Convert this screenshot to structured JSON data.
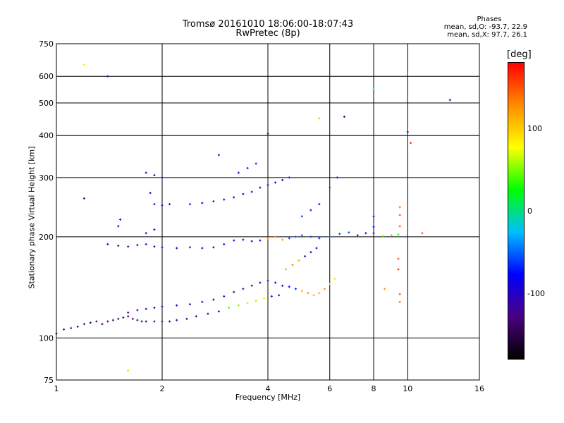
{
  "header": {
    "title_line1": "Tromsø 20161010 18:06:00-18:07:43",
    "title_line2": "RwPretec (8p)"
  },
  "phase_stats": {
    "title": "Phases",
    "line_o": "mean, sd,O: -93.7, 22.9",
    "line_x": "mean, sd,X:  97.7, 26.1"
  },
  "colorbar": {
    "unit": "[deg]",
    "ticks": [
      "100",
      "0",
      "-100"
    ],
    "tick_values": [
      100,
      0,
      -100
    ],
    "range": [
      -180,
      180
    ],
    "colors": [
      "#000000",
      "#4b0082",
      "#0000ff",
      "#00bfff",
      "#00ff00",
      "#ffff00",
      "#ff8c00",
      "#ff0000"
    ]
  },
  "chart_data": {
    "type": "scatter",
    "title": "Tromsø 20161010 18:06:00-18:07:43",
    "subtitle": "RwPretec (8p)",
    "xlabel": "Frequency [MHz]",
    "ylabel": "Stationary phase Virtual Height [km]",
    "x_scale": "log",
    "y_scale": "log",
    "xlim": [
      1,
      16
    ],
    "ylim": [
      75,
      750
    ],
    "x_ticks": [
      1,
      2,
      4,
      6,
      8,
      10,
      16
    ],
    "x_tick_labels": [
      "1",
      "2",
      "4",
      "6",
      "8",
      "10",
      "16"
    ],
    "y_ticks": [
      75,
      100,
      200,
      300,
      400,
      500,
      600,
      750
    ],
    "y_tick_labels": [
      "75",
      "100",
      "200",
      "300",
      "400",
      "500",
      "600",
      "750"
    ],
    "grid": true,
    "series": [
      {
        "color_by": "phase_deg",
        "points": [
          {
            "x": 1.0,
            "y": 103,
            "phase": -110
          },
          {
            "x": 1.05,
            "y": 106,
            "phase": -115
          },
          {
            "x": 1.1,
            "y": 107,
            "phase": -120
          },
          {
            "x": 1.15,
            "y": 108,
            "phase": -130
          },
          {
            "x": 1.2,
            "y": 110,
            "phase": -125
          },
          {
            "x": 1.25,
            "y": 111,
            "phase": -135
          },
          {
            "x": 1.3,
            "y": 112,
            "phase": -130
          },
          {
            "x": 1.35,
            "y": 110,
            "phase": -140
          },
          {
            "x": 1.4,
            "y": 112,
            "phase": -130
          },
          {
            "x": 1.45,
            "y": 113,
            "phase": -135
          },
          {
            "x": 1.5,
            "y": 114,
            "phase": -140
          },
          {
            "x": 1.55,
            "y": 115,
            "phase": -130
          },
          {
            "x": 1.6,
            "y": 116,
            "phase": -135
          },
          {
            "x": 1.65,
            "y": 114,
            "phase": -140
          },
          {
            "x": 1.7,
            "y": 113,
            "phase": -130
          },
          {
            "x": 1.75,
            "y": 112,
            "phase": -135
          },
          {
            "x": 1.8,
            "y": 112,
            "phase": -140
          },
          {
            "x": 1.9,
            "y": 112,
            "phase": -130
          },
          {
            "x": 2.0,
            "y": 112,
            "phase": -135
          },
          {
            "x": 2.1,
            "y": 112,
            "phase": -125
          },
          {
            "x": 2.2,
            "y": 113,
            "phase": -130
          },
          {
            "x": 2.35,
            "y": 114,
            "phase": -125
          },
          {
            "x": 2.5,
            "y": 116,
            "phase": -120
          },
          {
            "x": 2.7,
            "y": 118,
            "phase": -115
          },
          {
            "x": 2.9,
            "y": 120,
            "phase": -110
          },
          {
            "x": 3.1,
            "y": 123,
            "phase": 40
          },
          {
            "x": 3.3,
            "y": 125,
            "phase": 50
          },
          {
            "x": 3.5,
            "y": 127,
            "phase": 60
          },
          {
            "x": 3.7,
            "y": 129,
            "phase": 55
          },
          {
            "x": 3.9,
            "y": 131,
            "phase": 70
          },
          {
            "x": 4.1,
            "y": 133,
            "phase": -90
          },
          {
            "x": 4.3,
            "y": 134,
            "phase": -95
          },
          {
            "x": 1.6,
            "y": 119,
            "phase": -120
          },
          {
            "x": 1.7,
            "y": 121,
            "phase": -115
          },
          {
            "x": 1.8,
            "y": 122,
            "phase": -110
          },
          {
            "x": 1.9,
            "y": 123,
            "phase": -105
          },
          {
            "x": 2.0,
            "y": 124,
            "phase": -100
          },
          {
            "x": 2.2,
            "y": 125,
            "phase": -105
          },
          {
            "x": 2.4,
            "y": 126,
            "phase": -100
          },
          {
            "x": 2.6,
            "y": 128,
            "phase": -95
          },
          {
            "x": 2.8,
            "y": 130,
            "phase": -100
          },
          {
            "x": 3.0,
            "y": 133,
            "phase": -110
          },
          {
            "x": 3.2,
            "y": 137,
            "phase": -120
          },
          {
            "x": 3.4,
            "y": 140,
            "phase": -125
          },
          {
            "x": 3.6,
            "y": 143,
            "phase": -115
          },
          {
            "x": 3.8,
            "y": 146,
            "phase": -110
          },
          {
            "x": 4.0,
            "y": 148,
            "phase": -100
          },
          {
            "x": 4.2,
            "y": 146,
            "phase": -95
          },
          {
            "x": 4.4,
            "y": 143,
            "phase": -90
          },
          {
            "x": 4.6,
            "y": 142,
            "phase": -80
          },
          {
            "x": 4.8,
            "y": 140,
            "phase": -70
          },
          {
            "x": 5.0,
            "y": 138,
            "phase": 120
          },
          {
            "x": 5.2,
            "y": 136,
            "phase": 130
          },
          {
            "x": 5.4,
            "y": 134,
            "phase": 110
          },
          {
            "x": 5.6,
            "y": 136,
            "phase": 115
          },
          {
            "x": 5.8,
            "y": 140,
            "phase": 125
          },
          {
            "x": 6.0,
            "y": 145,
            "phase": 100
          },
          {
            "x": 6.2,
            "y": 150,
            "phase": 90
          },
          {
            "x": 4.5,
            "y": 160,
            "phase": 120
          },
          {
            "x": 4.7,
            "y": 165,
            "phase": 130
          },
          {
            "x": 4.9,
            "y": 170,
            "phase": 110
          },
          {
            "x": 5.1,
            "y": 175,
            "phase": -100
          },
          {
            "x": 5.3,
            "y": 180,
            "phase": -95
          },
          {
            "x": 5.5,
            "y": 185,
            "phase": -90
          },
          {
            "x": 1.4,
            "y": 190,
            "phase": -110
          },
          {
            "x": 1.5,
            "y": 188,
            "phase": -120
          },
          {
            "x": 1.6,
            "y": 187,
            "phase": -115
          },
          {
            "x": 1.7,
            "y": 189,
            "phase": -110
          },
          {
            "x": 1.8,
            "y": 190,
            "phase": -105
          },
          {
            "x": 1.9,
            "y": 187,
            "phase": -110
          },
          {
            "x": 2.0,
            "y": 186,
            "phase": -115
          },
          {
            "x": 2.2,
            "y": 185,
            "phase": -100
          },
          {
            "x": 2.4,
            "y": 186,
            "phase": -95
          },
          {
            "x": 2.6,
            "y": 185,
            "phase": -100
          },
          {
            "x": 2.8,
            "y": 186,
            "phase": -110
          },
          {
            "x": 3.0,
            "y": 190,
            "phase": -105
          },
          {
            "x": 3.2,
            "y": 195,
            "phase": -100
          },
          {
            "x": 3.4,
            "y": 196,
            "phase": -90
          },
          {
            "x": 3.6,
            "y": 194,
            "phase": -95
          },
          {
            "x": 3.8,
            "y": 195,
            "phase": -85
          },
          {
            "x": 4.0,
            "y": 198,
            "phase": 130
          },
          {
            "x": 4.2,
            "y": 200,
            "phase": 140
          },
          {
            "x": 4.4,
            "y": 196,
            "phase": 120
          },
          {
            "x": 4.6,
            "y": 198,
            "phase": -60
          },
          {
            "x": 4.8,
            "y": 200,
            "phase": -55
          },
          {
            "x": 5.0,
            "y": 202,
            "phase": -50
          },
          {
            "x": 5.3,
            "y": 200,
            "phase": -60
          },
          {
            "x": 5.6,
            "y": 198,
            "phase": -70
          },
          {
            "x": 6.0,
            "y": 200,
            "phase": -50
          },
          {
            "x": 6.4,
            "y": 204,
            "phase": -60
          },
          {
            "x": 6.8,
            "y": 206,
            "phase": -55
          },
          {
            "x": 7.2,
            "y": 202,
            "phase": -70
          },
          {
            "x": 7.6,
            "y": 205,
            "phase": -80
          },
          {
            "x": 8.0,
            "y": 205,
            "phase": -90
          },
          {
            "x": 8.5,
            "y": 201,
            "phase": 50
          },
          {
            "x": 9.0,
            "y": 202,
            "phase": 40
          },
          {
            "x": 9.4,
            "y": 203,
            "phase": 30
          },
          {
            "x": 1.8,
            "y": 310,
            "phase": -100
          },
          {
            "x": 1.9,
            "y": 305,
            "phase": -110
          },
          {
            "x": 2.0,
            "y": 300,
            "phase": -105
          },
          {
            "x": 1.85,
            "y": 270,
            "phase": -110
          },
          {
            "x": 1.9,
            "y": 250,
            "phase": -100
          },
          {
            "x": 2.0,
            "y": 248,
            "phase": -95
          },
          {
            "x": 2.1,
            "y": 250,
            "phase": -100
          },
          {
            "x": 2.4,
            "y": 250,
            "phase": -80
          },
          {
            "x": 2.6,
            "y": 252,
            "phase": -75
          },
          {
            "x": 2.8,
            "y": 255,
            "phase": -70
          },
          {
            "x": 3.0,
            "y": 258,
            "phase": -80
          },
          {
            "x": 3.2,
            "y": 262,
            "phase": -85
          },
          {
            "x": 3.4,
            "y": 268,
            "phase": -90
          },
          {
            "x": 3.6,
            "y": 272,
            "phase": -95
          },
          {
            "x": 3.8,
            "y": 280,
            "phase": -90
          },
          {
            "x": 4.0,
            "y": 285,
            "phase": -85
          },
          {
            "x": 4.2,
            "y": 290,
            "phase": -80
          },
          {
            "x": 4.4,
            "y": 295,
            "phase": -75
          },
          {
            "x": 4.6,
            "y": 300,
            "phase": -70
          },
          {
            "x": 3.3,
            "y": 310,
            "phase": -80
          },
          {
            "x": 3.5,
            "y": 320,
            "phase": -75
          },
          {
            "x": 3.7,
            "y": 330,
            "phase": -70
          },
          {
            "x": 5.0,
            "y": 230,
            "phase": -60
          },
          {
            "x": 5.3,
            "y": 240,
            "phase": -70
          },
          {
            "x": 5.6,
            "y": 250,
            "phase": -80
          },
          {
            "x": 6.0,
            "y": 280,
            "phase": -60
          },
          {
            "x": 6.3,
            "y": 300,
            "phase": -70
          },
          {
            "x": 1.8,
            "y": 205,
            "phase": -100
          },
          {
            "x": 1.9,
            "y": 210,
            "phase": -90
          },
          {
            "x": 1.5,
            "y": 215,
            "phase": -100
          },
          {
            "x": 1.52,
            "y": 225,
            "phase": -110
          },
          {
            "x": 2.9,
            "y": 350,
            "phase": -110
          },
          {
            "x": 4.0,
            "y": 405,
            "phase": -120
          },
          {
            "x": 6.6,
            "y": 455,
            "phase": -130
          },
          {
            "x": 5.6,
            "y": 450,
            "phase": 50
          },
          {
            "x": 1.2,
            "y": 650,
            "phase": 70
          },
          {
            "x": 1.4,
            "y": 600,
            "phase": -120
          },
          {
            "x": 1.2,
            "y": 260,
            "phase": -130
          },
          {
            "x": 1.6,
            "y": 80,
            "phase": 60
          },
          {
            "x": 8.0,
            "y": 550,
            "phase": 20
          },
          {
            "x": 10.0,
            "y": 410,
            "phase": -110
          },
          {
            "x": 10.2,
            "y": 380,
            "phase": 170
          },
          {
            "x": 13.2,
            "y": 510,
            "phase": -120
          },
          {
            "x": 9.5,
            "y": 245,
            "phase": 140
          },
          {
            "x": 9.5,
            "y": 232,
            "phase": 150
          },
          {
            "x": 9.5,
            "y": 215,
            "phase": 145
          },
          {
            "x": 9.4,
            "y": 172,
            "phase": 150
          },
          {
            "x": 9.4,
            "y": 160,
            "phase": 160
          },
          {
            "x": 9.5,
            "y": 135,
            "phase": 150
          },
          {
            "x": 9.5,
            "y": 128,
            "phase": 140
          },
          {
            "x": 8.6,
            "y": 140,
            "phase": 120
          },
          {
            "x": 11.0,
            "y": 205,
            "phase": 150
          },
          {
            "x": 8.0,
            "y": 230,
            "phase": -100
          },
          {
            "x": 8.0,
            "y": 214,
            "phase": -90
          }
        ]
      }
    ]
  }
}
